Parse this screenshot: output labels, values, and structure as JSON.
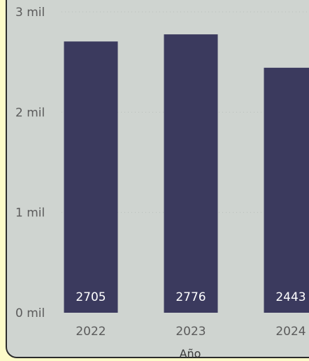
{
  "chart_data": {
    "type": "bar",
    "categories": [
      "2022",
      "2023",
      "2024"
    ],
    "values": [
      2705,
      2776,
      2443
    ],
    "data_labels": [
      "2705",
      "2776",
      "2443"
    ],
    "xlabel": "Año",
    "ylabel": "",
    "ylim": [
      0,
      3000
    ],
    "y_ticks": [
      {
        "value": 0,
        "label": "0 mil"
      },
      {
        "value": 1000,
        "label": "1 mil"
      },
      {
        "value": 2000,
        "label": "2 mil"
      },
      {
        "value": 3000,
        "label": "3 mil"
      }
    ],
    "grid": true,
    "legend": "none",
    "colors": {
      "bar": "#3b3a5e",
      "background": "#cfd4d0",
      "outer_background": "#fdfbc9"
    }
  }
}
